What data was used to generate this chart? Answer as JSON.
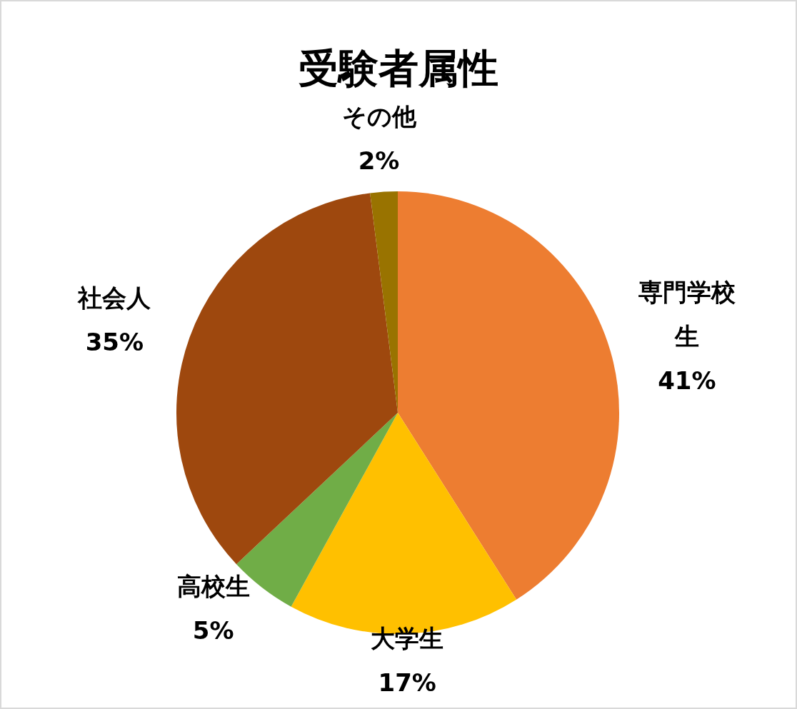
{
  "chart_data": {
    "type": "pie",
    "title": "受験者属性",
    "categories": [
      "専門学校生",
      "大学生",
      "高校生",
      "社会人",
      "その他"
    ],
    "values": [
      41,
      17,
      5,
      35,
      2
    ],
    "value_labels": [
      "41%",
      "17%",
      "5%",
      "35%",
      "2%"
    ],
    "colors": [
      "#ed7d31",
      "#ffc000",
      "#70ad47",
      "#9e480e",
      "#997300"
    ]
  }
}
